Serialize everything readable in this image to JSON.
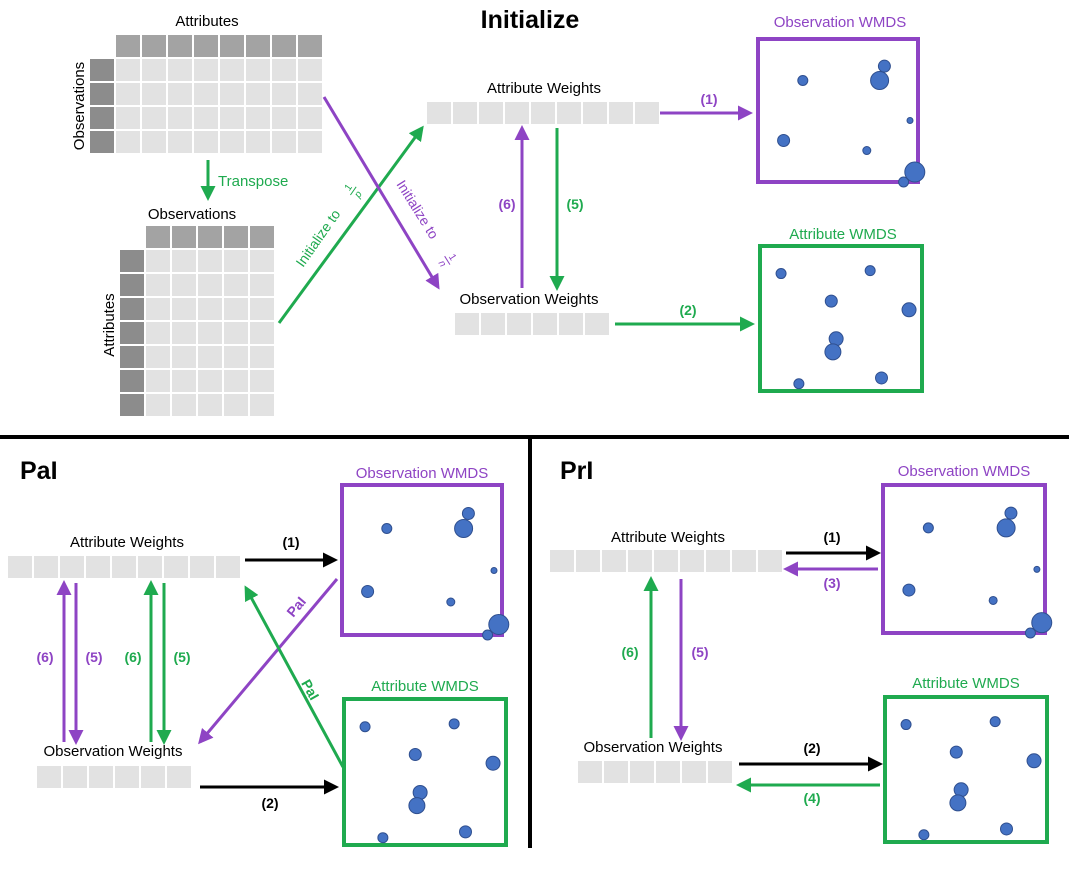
{
  "colors": {
    "purple": "#8e44c4",
    "green": "#1faa4f",
    "black": "#000000",
    "cell_light": "#e2e2e2",
    "cell_mid": "#a3a3a3",
    "cell_dark": "#8c8c8c",
    "point_fill": "#4472c4",
    "point_stroke": "#2f4f8f"
  },
  "sections": {
    "initialize": "Initialize",
    "pai": "PaI",
    "pri": "PrI"
  },
  "matrix_labels": {
    "attributes": "Attributes",
    "observations": "Observations"
  },
  "transpose_label": "Transpose",
  "init_labels": {
    "to_p_prefix": "Initialize to",
    "to_p_num": "1",
    "to_p_den": "p",
    "to_n_prefix": "Initialize to",
    "to_n_num": "1",
    "to_n_den": "n"
  },
  "weights": {
    "attribute": "Attribute Weights",
    "observation": "Observation Weights"
  },
  "wmds": {
    "observation": "Observation WMDS",
    "attribute": "Attribute WMDS"
  },
  "steps": {
    "s1": "(1)",
    "s2": "(2)",
    "s3": "(3)",
    "s4": "(4)",
    "s5": "(5)",
    "s6": "(6)"
  },
  "pai_arrow_label": "PaI"
}
